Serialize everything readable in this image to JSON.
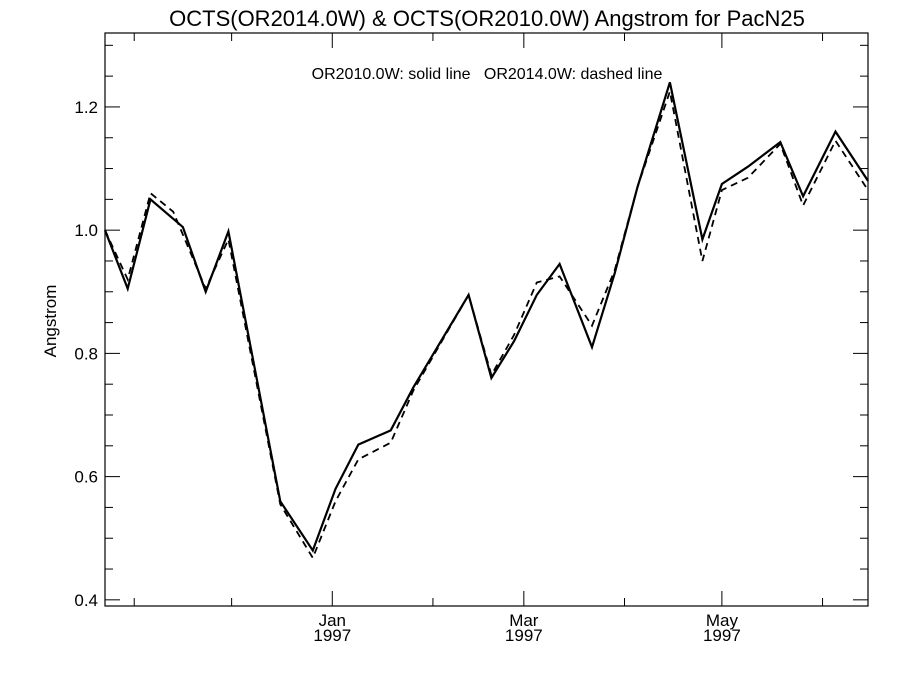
{
  "chart_data": {
    "type": "line",
    "title": "OCTS(OR2014.0W) & OCTS(OR2010.0W)  Angstrom for PacN25",
    "annotation": "OR2010.0W: solid line   OR2014.0W: dashed line",
    "ylabel": "Angstrom",
    "xlabel": "",
    "x_unit": "date",
    "xlim": [
      "1996-10-23",
      "1997-06-15"
    ],
    "ylim": [
      0.39,
      1.32
    ],
    "yticks": [
      0.4,
      0.6,
      0.8,
      1.0,
      1.2
    ],
    "ytick_labels": [
      "0.4",
      "0.6",
      "0.8",
      "1.0",
      "1.2"
    ],
    "xticks": [
      {
        "date": "1997-01-01",
        "label": "Jan",
        "year": "1997"
      },
      {
        "date": "1997-03-01",
        "label": "Mar",
        "year": "1997"
      },
      {
        "date": "1997-05-01",
        "label": "May",
        "year": "1997"
      }
    ],
    "grid": false,
    "series": [
      {
        "name": "OR2010.0W",
        "style": "solid",
        "color": "#000000",
        "points": [
          [
            "1996-10-23",
            1.0
          ],
          [
            "1996-10-30",
            0.905
          ],
          [
            "1996-11-06",
            1.05
          ],
          [
            "1996-11-16",
            1.005
          ],
          [
            "1996-11-23",
            0.9
          ],
          [
            "1996-11-30",
            0.998
          ],
          [
            "1996-12-16",
            0.56
          ],
          [
            "1996-12-26",
            0.48
          ],
          [
            "1997-01-02",
            0.58
          ],
          [
            "1997-01-09",
            0.652
          ],
          [
            "1997-01-19",
            0.675
          ],
          [
            "1997-01-26",
            0.745
          ],
          [
            "1997-02-12",
            0.895
          ],
          [
            "1997-02-19",
            0.76
          ],
          [
            "1997-02-26",
            0.82
          ],
          [
            "1997-03-05",
            0.895
          ],
          [
            "1997-03-12",
            0.945
          ],
          [
            "1997-03-22",
            0.81
          ],
          [
            "1997-03-29",
            0.93
          ],
          [
            "1997-04-05",
            1.07
          ],
          [
            "1997-04-15",
            1.24
          ],
          [
            "1997-04-25",
            0.985
          ],
          [
            "1997-05-01",
            1.075
          ],
          [
            "1997-05-09",
            1.103
          ],
          [
            "1997-05-19",
            1.143
          ],
          [
            "1997-05-26",
            1.055
          ],
          [
            "1997-06-05",
            1.16
          ],
          [
            "1997-06-15",
            1.08
          ]
        ]
      },
      {
        "name": "OR2014.0W",
        "style": "dashed",
        "color": "#000000",
        "points": [
          [
            "1996-10-23",
            1.0
          ],
          [
            "1996-10-30",
            0.92
          ],
          [
            "1996-11-06",
            1.06
          ],
          [
            "1996-11-13",
            1.03
          ],
          [
            "1996-11-23",
            0.905
          ],
          [
            "1996-11-30",
            0.985
          ],
          [
            "1996-12-16",
            0.555
          ],
          [
            "1996-12-26",
            0.468
          ],
          [
            "1997-01-02",
            0.56
          ],
          [
            "1997-01-09",
            0.628
          ],
          [
            "1997-01-19",
            0.655
          ],
          [
            "1997-01-26",
            0.74
          ],
          [
            "1997-02-12",
            0.895
          ],
          [
            "1997-02-19",
            0.765
          ],
          [
            "1997-02-26",
            0.83
          ],
          [
            "1997-03-05",
            0.915
          ],
          [
            "1997-03-12",
            0.925
          ],
          [
            "1997-03-22",
            0.845
          ],
          [
            "1997-03-29",
            0.935
          ],
          [
            "1997-04-05",
            1.07
          ],
          [
            "1997-04-15",
            1.225
          ],
          [
            "1997-04-25",
            0.95
          ],
          [
            "1997-05-01",
            1.065
          ],
          [
            "1997-05-09",
            1.085
          ],
          [
            "1997-05-19",
            1.14
          ],
          [
            "1997-05-26",
            1.04
          ],
          [
            "1997-06-05",
            1.145
          ],
          [
            "1997-06-15",
            1.065
          ]
        ]
      }
    ]
  }
}
